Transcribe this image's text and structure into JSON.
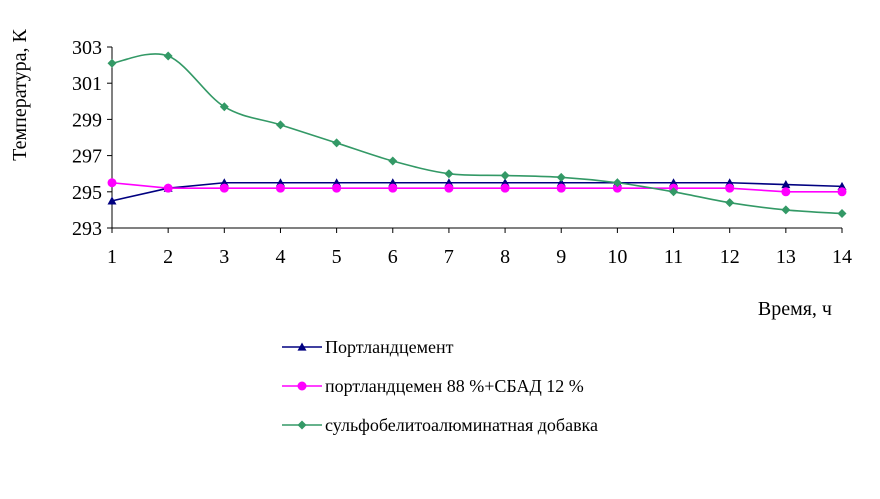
{
  "chart_data": {
    "type": "line",
    "title": "",
    "xlabel": "Время, ч",
    "ylabel": "Температура, К",
    "x": [
      1,
      2,
      3,
      4,
      5,
      6,
      7,
      8,
      9,
      10,
      11,
      12,
      13,
      14
    ],
    "xlim": [
      1,
      14
    ],
    "ylim": [
      293,
      303
    ],
    "yticks": [
      293,
      295,
      297,
      299,
      301,
      303
    ],
    "grid": false,
    "legend_position": "bottom",
    "series": [
      {
        "name": "Портландцемент",
        "color": "#000080",
        "marker": "triangle",
        "smooth": false,
        "values": [
          294.5,
          295.2,
          295.5,
          295.5,
          295.5,
          295.5,
          295.5,
          295.5,
          295.5,
          295.5,
          295.5,
          295.5,
          295.4,
          295.3
        ]
      },
      {
        "name": "портландцемен 88 %+СБАД 12 %",
        "color": "#FF00FF",
        "marker": "circle",
        "smooth": false,
        "values": [
          295.5,
          295.2,
          295.2,
          295.2,
          295.2,
          295.2,
          295.2,
          295.2,
          295.2,
          295.2,
          295.2,
          295.2,
          295.0,
          295.0
        ]
      },
      {
        "name": "сульфобелитоалюминатная добавка",
        "color": "#339966",
        "marker": "diamond",
        "smooth": true,
        "values": [
          302.1,
          302.5,
          299.7,
          298.7,
          297.7,
          296.7,
          296.0,
          295.9,
          295.8,
          295.5,
          295.0,
          294.4,
          294.0,
          293.8
        ]
      }
    ]
  }
}
